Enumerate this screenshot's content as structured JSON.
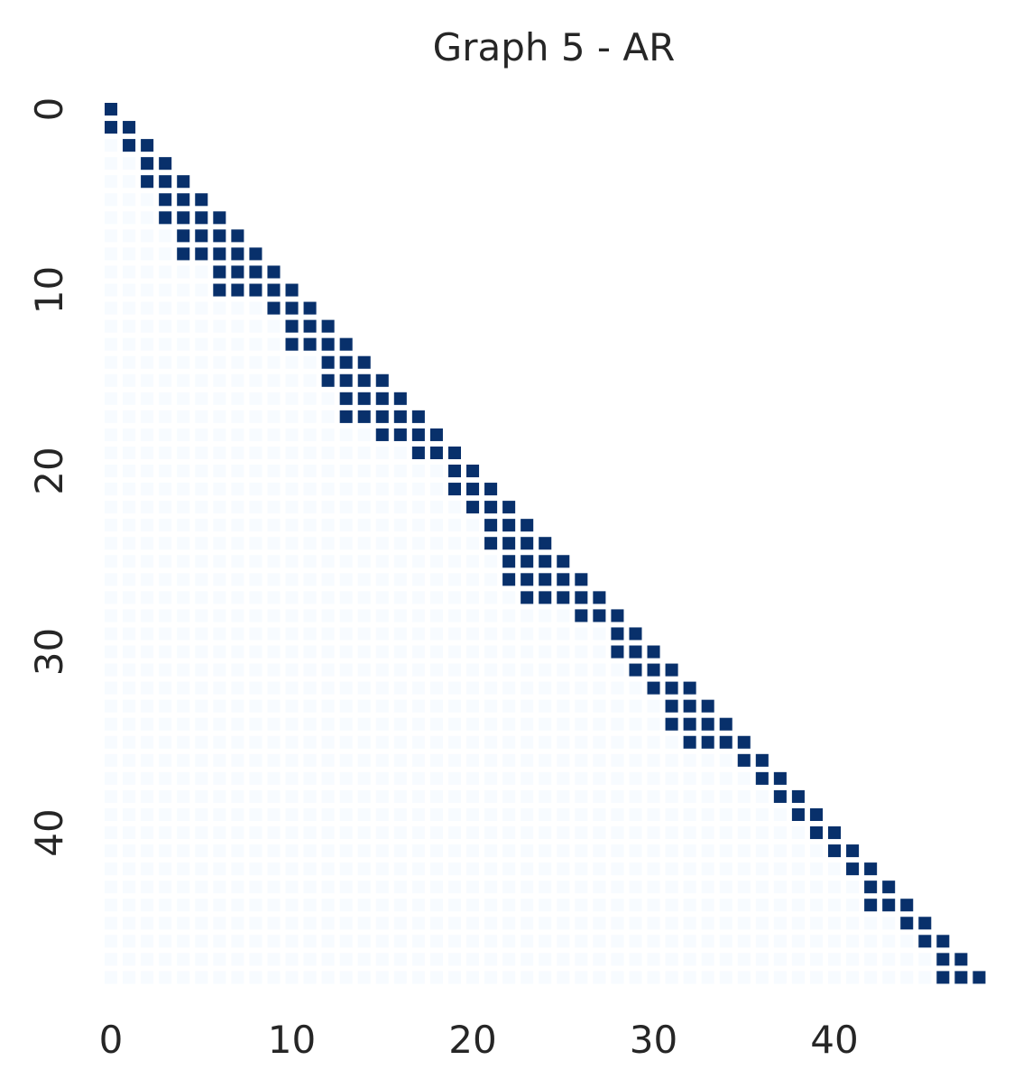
{
  "chart_data": {
    "type": "heatmap",
    "title": "Graph 5 - AR",
    "xlabel": "",
    "ylabel": "",
    "n_rows": 49,
    "n_cols": 49,
    "x_ticks": [
      0,
      10,
      20,
      30,
      40
    ],
    "y_ticks": [
      0,
      10,
      20,
      30,
      40
    ],
    "colormap": "Blues",
    "colors": {
      "high": "#08306b",
      "low": "#f7fbff",
      "grid_lines": "#ffffff"
    },
    "value_range": [
      0,
      1
    ],
    "lower_triangle_only": true,
    "ones": [
      [
        0,
        0
      ],
      [
        1,
        0
      ],
      [
        1,
        1
      ],
      [
        2,
        1
      ],
      [
        2,
        2
      ],
      [
        3,
        2
      ],
      [
        3,
        3
      ],
      [
        4,
        2
      ],
      [
        4,
        3
      ],
      [
        4,
        4
      ],
      [
        5,
        3
      ],
      [
        5,
        4
      ],
      [
        5,
        5
      ],
      [
        6,
        3
      ],
      [
        6,
        4
      ],
      [
        6,
        5
      ],
      [
        6,
        6
      ],
      [
        7,
        4
      ],
      [
        7,
        5
      ],
      [
        7,
        6
      ],
      [
        7,
        7
      ],
      [
        8,
        4
      ],
      [
        8,
        5
      ],
      [
        8,
        6
      ],
      [
        8,
        7
      ],
      [
        8,
        8
      ],
      [
        9,
        6
      ],
      [
        9,
        7
      ],
      [
        9,
        8
      ],
      [
        9,
        9
      ],
      [
        10,
        6
      ],
      [
        10,
        7
      ],
      [
        10,
        8
      ],
      [
        10,
        9
      ],
      [
        10,
        10
      ],
      [
        11,
        9
      ],
      [
        11,
        10
      ],
      [
        11,
        11
      ],
      [
        12,
        10
      ],
      [
        12,
        11
      ],
      [
        12,
        12
      ],
      [
        13,
        10
      ],
      [
        13,
        11
      ],
      [
        13,
        12
      ],
      [
        13,
        13
      ],
      [
        14,
        12
      ],
      [
        14,
        13
      ],
      [
        14,
        14
      ],
      [
        15,
        12
      ],
      [
        15,
        13
      ],
      [
        15,
        14
      ],
      [
        15,
        15
      ],
      [
        16,
        13
      ],
      [
        16,
        14
      ],
      [
        16,
        15
      ],
      [
        16,
        16
      ],
      [
        17,
        13
      ],
      [
        17,
        14
      ],
      [
        17,
        15
      ],
      [
        17,
        16
      ],
      [
        17,
        17
      ],
      [
        18,
        15
      ],
      [
        18,
        16
      ],
      [
        18,
        17
      ],
      [
        18,
        18
      ],
      [
        19,
        17
      ],
      [
        19,
        18
      ],
      [
        19,
        19
      ],
      [
        20,
        19
      ],
      [
        20,
        20
      ],
      [
        21,
        19
      ],
      [
        21,
        20
      ],
      [
        21,
        21
      ],
      [
        22,
        20
      ],
      [
        22,
        21
      ],
      [
        22,
        22
      ],
      [
        23,
        21
      ],
      [
        23,
        22
      ],
      [
        23,
        23
      ],
      [
        24,
        21
      ],
      [
        24,
        22
      ],
      [
        24,
        23
      ],
      [
        24,
        24
      ],
      [
        25,
        22
      ],
      [
        25,
        23
      ],
      [
        25,
        24
      ],
      [
        25,
        25
      ],
      [
        26,
        22
      ],
      [
        26,
        23
      ],
      [
        26,
        24
      ],
      [
        26,
        25
      ],
      [
        26,
        26
      ],
      [
        27,
        23
      ],
      [
        27,
        24
      ],
      [
        27,
        25
      ],
      [
        27,
        26
      ],
      [
        27,
        27
      ],
      [
        28,
        26
      ],
      [
        28,
        27
      ],
      [
        28,
        28
      ],
      [
        29,
        28
      ],
      [
        29,
        29
      ],
      [
        30,
        28
      ],
      [
        30,
        29
      ],
      [
        30,
        30
      ],
      [
        31,
        29
      ],
      [
        31,
        30
      ],
      [
        31,
        31
      ],
      [
        32,
        30
      ],
      [
        32,
        31
      ],
      [
        32,
        32
      ],
      [
        33,
        31
      ],
      [
        33,
        32
      ],
      [
        33,
        33
      ],
      [
        34,
        31
      ],
      [
        34,
        32
      ],
      [
        34,
        33
      ],
      [
        34,
        34
      ],
      [
        35,
        32
      ],
      [
        35,
        33
      ],
      [
        35,
        34
      ],
      [
        35,
        35
      ],
      [
        36,
        35
      ],
      [
        36,
        36
      ],
      [
        37,
        36
      ],
      [
        37,
        37
      ],
      [
        38,
        37
      ],
      [
        38,
        38
      ],
      [
        39,
        38
      ],
      [
        39,
        39
      ],
      [
        40,
        39
      ],
      [
        40,
        40
      ],
      [
        41,
        40
      ],
      [
        41,
        41
      ],
      [
        42,
        41
      ],
      [
        42,
        42
      ],
      [
        43,
        42
      ],
      [
        43,
        43
      ],
      [
        44,
        42
      ],
      [
        44,
        43
      ],
      [
        44,
        44
      ],
      [
        45,
        44
      ],
      [
        45,
        45
      ],
      [
        46,
        45
      ],
      [
        46,
        46
      ],
      [
        47,
        46
      ],
      [
        47,
        47
      ],
      [
        48,
        46
      ],
      [
        48,
        47
      ],
      [
        48,
        48
      ]
    ]
  }
}
